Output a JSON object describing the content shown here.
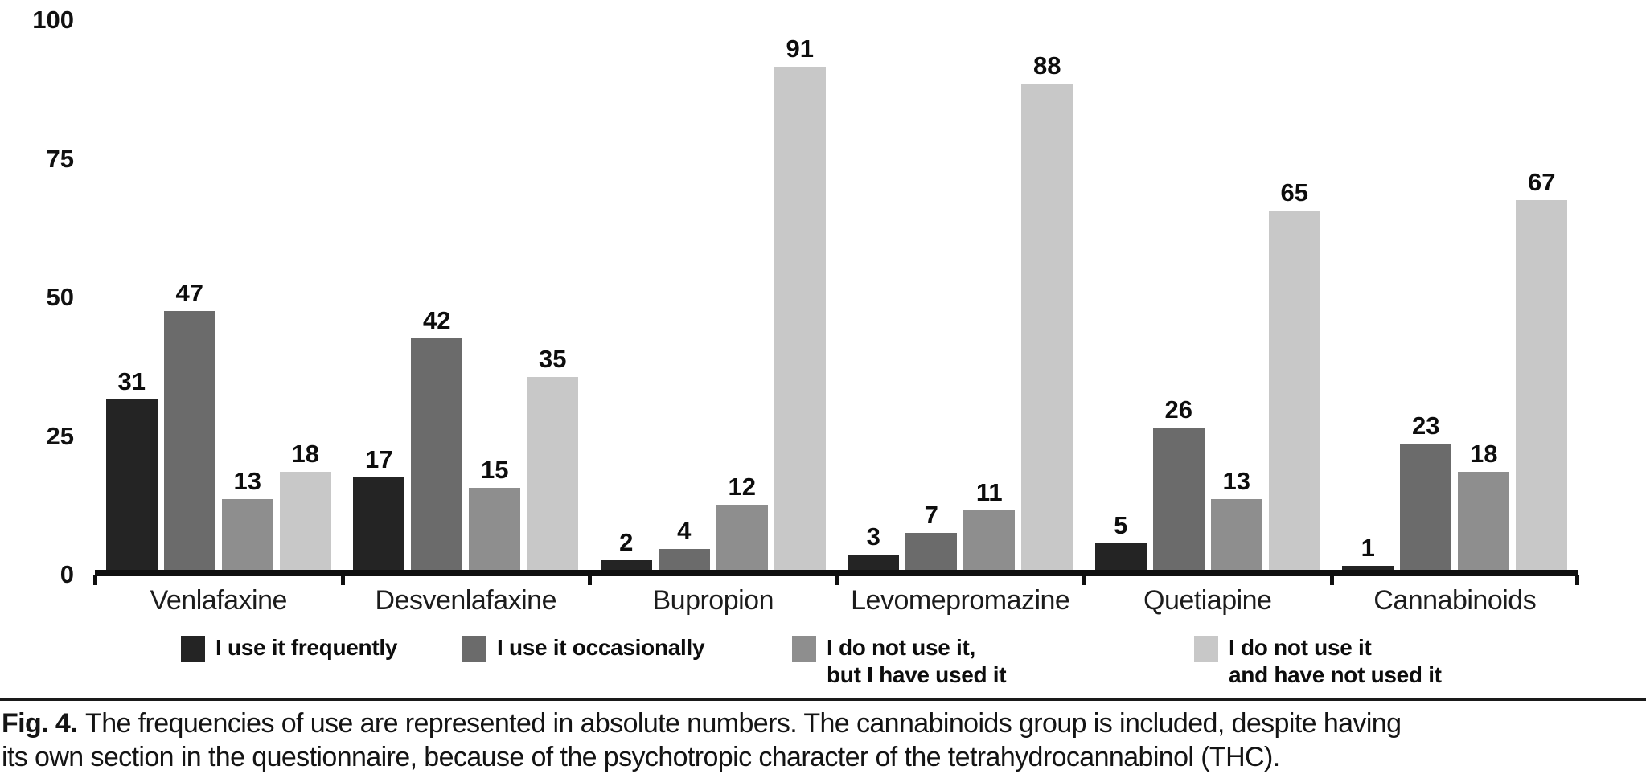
{
  "figure": {
    "caption": {
      "prefix": "Fig. 4.",
      "line1": "The frequencies of use are represented in absolute numbers. The cannabinoids group is included, despite having",
      "line2": "its own section in the questionnaire, because of the psychotropic character of the tetrahydrocannabinol (THC)."
    }
  },
  "chart_data": {
    "type": "bar",
    "title": "",
    "categories": [
      "Venlafaxine",
      "Desvenlafaxine",
      "Bupropion",
      "Levomepromazine",
      "Quetiapine",
      "Cannabinoids"
    ],
    "series": [
      {
        "name": "I use it frequently",
        "label_lines": [
          "I use it frequently"
        ],
        "color": "#242424",
        "values": [
          31,
          17,
          2,
          3,
          5,
          1
        ]
      },
      {
        "name": "I use it occasionally",
        "label_lines": [
          "I use it occasionally"
        ],
        "color": "#6b6b6b",
        "values": [
          47,
          42,
          4,
          7,
          26,
          23
        ]
      },
      {
        "name": "I do not use it, but I have used it",
        "label_lines": [
          "I do not use it,",
          "but I have used it"
        ],
        "color": "#8e8e8e",
        "values": [
          13,
          15,
          12,
          11,
          13,
          18
        ]
      },
      {
        "name": "I do not use it and have not used it",
        "label_lines": [
          "I do not use it",
          "and have not used it"
        ],
        "color": "#c8c8c8",
        "values": [
          18,
          35,
          91,
          88,
          65,
          67
        ]
      }
    ],
    "xlabel": "",
    "ylabel": "",
    "ylim": [
      0,
      100
    ],
    "yticks": [
      0,
      25,
      50,
      75,
      100
    ],
    "grid": false,
    "legend_position": "bottom",
    "value_labels": true,
    "text_color": "#111111",
    "axis_color": "#101010"
  }
}
